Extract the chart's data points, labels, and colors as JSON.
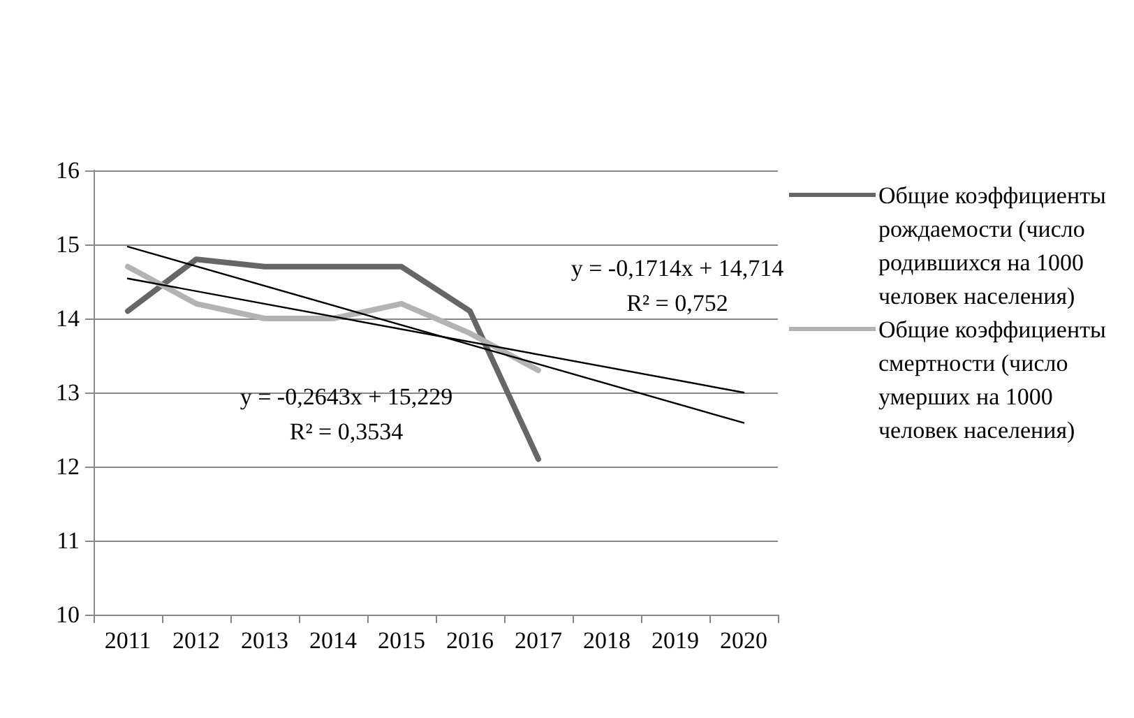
{
  "chart_data": {
    "type": "line",
    "categories": [
      "2011",
      "2012",
      "2013",
      "2014",
      "2015",
      "2016",
      "2017",
      "2018",
      "2019",
      "2020"
    ],
    "series": [
      {
        "name": "Общие коэффициенты рождаемости (число родившихся на 1000 человек населения)",
        "color": "#666666",
        "values": [
          14.1,
          14.8,
          14.7,
          14.7,
          14.7,
          14.1,
          12.1,
          null,
          null,
          null
        ]
      },
      {
        "name": "Общие коэффициенты смертности (число умерших на 1000 человек населения)",
        "color": "#b3b3b3",
        "values": [
          14.7,
          14.2,
          14.0,
          14.0,
          14.2,
          13.8,
          13.3,
          null,
          null,
          null
        ]
      },
      {
        "type": "line",
        "color": "#000000",
        "values": [
          14.97,
          null,
          null,
          null,
          null,
          null,
          null,
          null,
          null,
          12.59
        ]
      },
      {
        "type": "line",
        "color": "#000000",
        "values": [
          14.54,
          null,
          null,
          null,
          null,
          null,
          null,
          null,
          null,
          13.0
        ]
      }
    ],
    "annotations": [
      "y = -0,1714x + 14,714",
      "R² = 0,752",
      "y = -0,2643x + 15,229",
      "R² = 0,3534"
    ],
    "ylim": [
      10,
      16
    ],
    "yticks": [
      10,
      11,
      12,
      13,
      14,
      15,
      16
    ],
    "grid": "y",
    "legend": "right",
    "marker": "none",
    "line_style": "solid"
  }
}
